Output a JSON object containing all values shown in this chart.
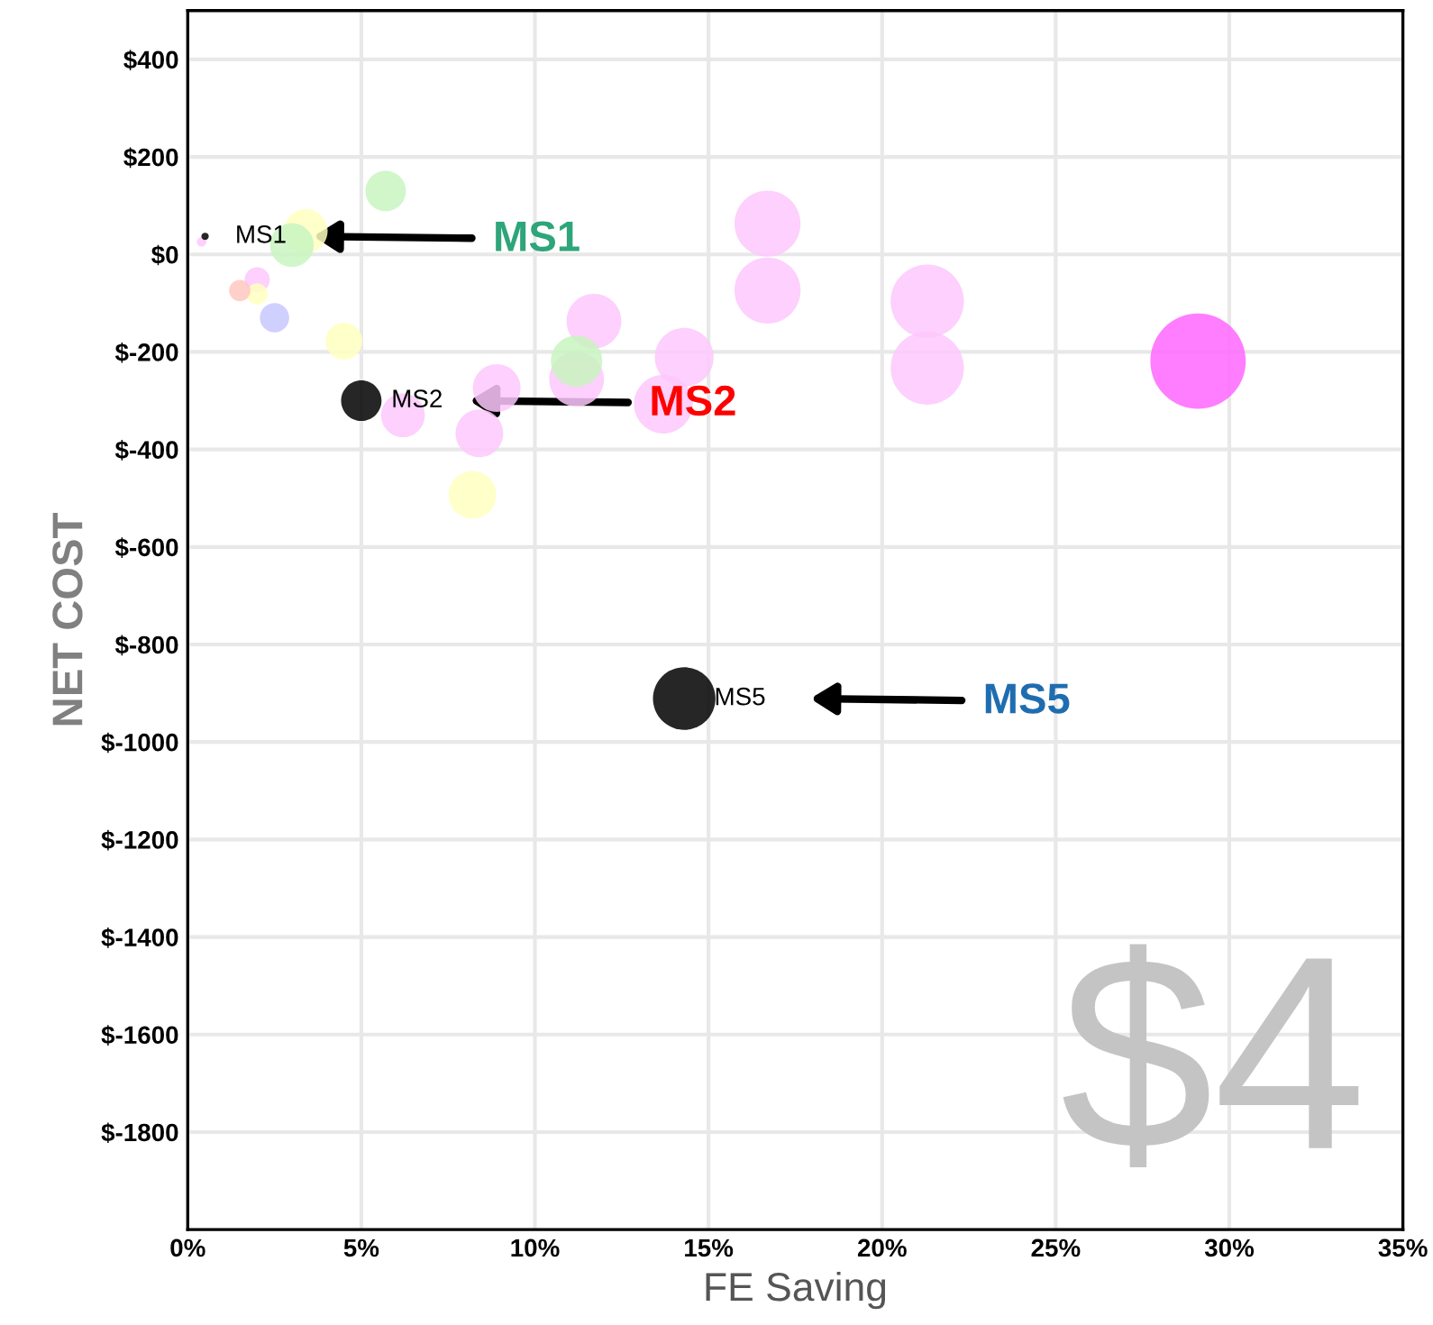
{
  "chart_data": {
    "type": "bubble",
    "xlabel": "FE Saving",
    "ylabel": "NET COST",
    "xlim": [
      0,
      35
    ],
    "ylim": [
      -2000,
      500
    ],
    "xticks": [
      {
        "value": 0,
        "label": "0%"
      },
      {
        "value": 5,
        "label": "5%"
      },
      {
        "value": 10,
        "label": "10%"
      },
      {
        "value": 15,
        "label": "15%"
      },
      {
        "value": 20,
        "label": "20%"
      },
      {
        "value": 25,
        "label": "25%"
      },
      {
        "value": 30,
        "label": "30%"
      },
      {
        "value": 35,
        "label": "35%"
      }
    ],
    "yticks": [
      {
        "value": -1800,
        "label": "$-1800"
      },
      {
        "value": -1600,
        "label": "$-1600"
      },
      {
        "value": -1400,
        "label": "$-1400"
      },
      {
        "value": -1200,
        "label": "$-1200"
      },
      {
        "value": -1000,
        "label": "$-1000"
      },
      {
        "value": -800,
        "label": "$-800"
      },
      {
        "value": -600,
        "label": "$-600"
      },
      {
        "value": -400,
        "label": "$-400"
      },
      {
        "value": -200,
        "label": "$-200"
      },
      {
        "value": 0,
        "label": "$0"
      },
      {
        "value": 200,
        "label": "$200"
      },
      {
        "value": 400,
        "label": "$400"
      }
    ],
    "grid": true,
    "legend": false,
    "series": [
      {
        "color": "#fdc8fd",
        "x": [
          0.4,
          2.0,
          6.2,
          8.9,
          8.4,
          11.7,
          11.2,
          14.3,
          13.7,
          16.7,
          16.7,
          21.3,
          21.3
        ],
        "values": [
          26,
          -52,
          -330,
          -274,
          -367,
          -137,
          -256,
          -211,
          -307,
          63,
          -74,
          -96,
          -233
        ],
        "sizes": [
          0.01,
          0.07,
          0.21,
          0.25,
          0.25,
          0.33,
          0.33,
          0.38,
          0.38,
          0.48,
          0.48,
          0.59,
          0.59
        ]
      },
      {
        "color": "#ff66ff",
        "x": [
          29.1
        ],
        "values": [
          -219
        ],
        "sizes": [
          1
        ]
      },
      {
        "color": "#ffffc0",
        "x": [
          3.4,
          2.0,
          4.5,
          8.2
        ],
        "values": [
          48,
          -81,
          -178,
          -493
        ],
        "sizes": [
          0.21,
          0.05,
          0.15,
          0.25
        ]
      },
      {
        "color": "#c8f5c0",
        "x": [
          3.0,
          5.7,
          11.2
        ],
        "values": [
          19,
          130,
          -219
        ],
        "sizes": [
          0.21,
          0.18,
          0.29
        ]
      },
      {
        "color": "#ffc8c0",
        "x": [
          1.5
        ],
        "values": [
          -74
        ],
        "sizes": [
          0.05
        ]
      },
      {
        "color": "#c8c8ff",
        "x": [
          2.5
        ],
        "values": [
          -130
        ],
        "sizes": [
          0.095
        ]
      },
      {
        "color": "#000000",
        "x": [
          0.5,
          5.0,
          14.3
        ],
        "values": [
          37,
          -300,
          -911
        ],
        "sizes": [
          0.006,
          0.18,
          0.43
        ]
      }
    ],
    "annotations": [
      {
        "text": "MS1",
        "x": 0.5,
        "y": 37
      },
      {
        "text": "MS2",
        "x": 5.0,
        "y": -300
      },
      {
        "text": "MS5",
        "x": 14.3,
        "y": -911
      },
      "MS1",
      "MS2",
      "MS5",
      "$4"
    ]
  }
}
